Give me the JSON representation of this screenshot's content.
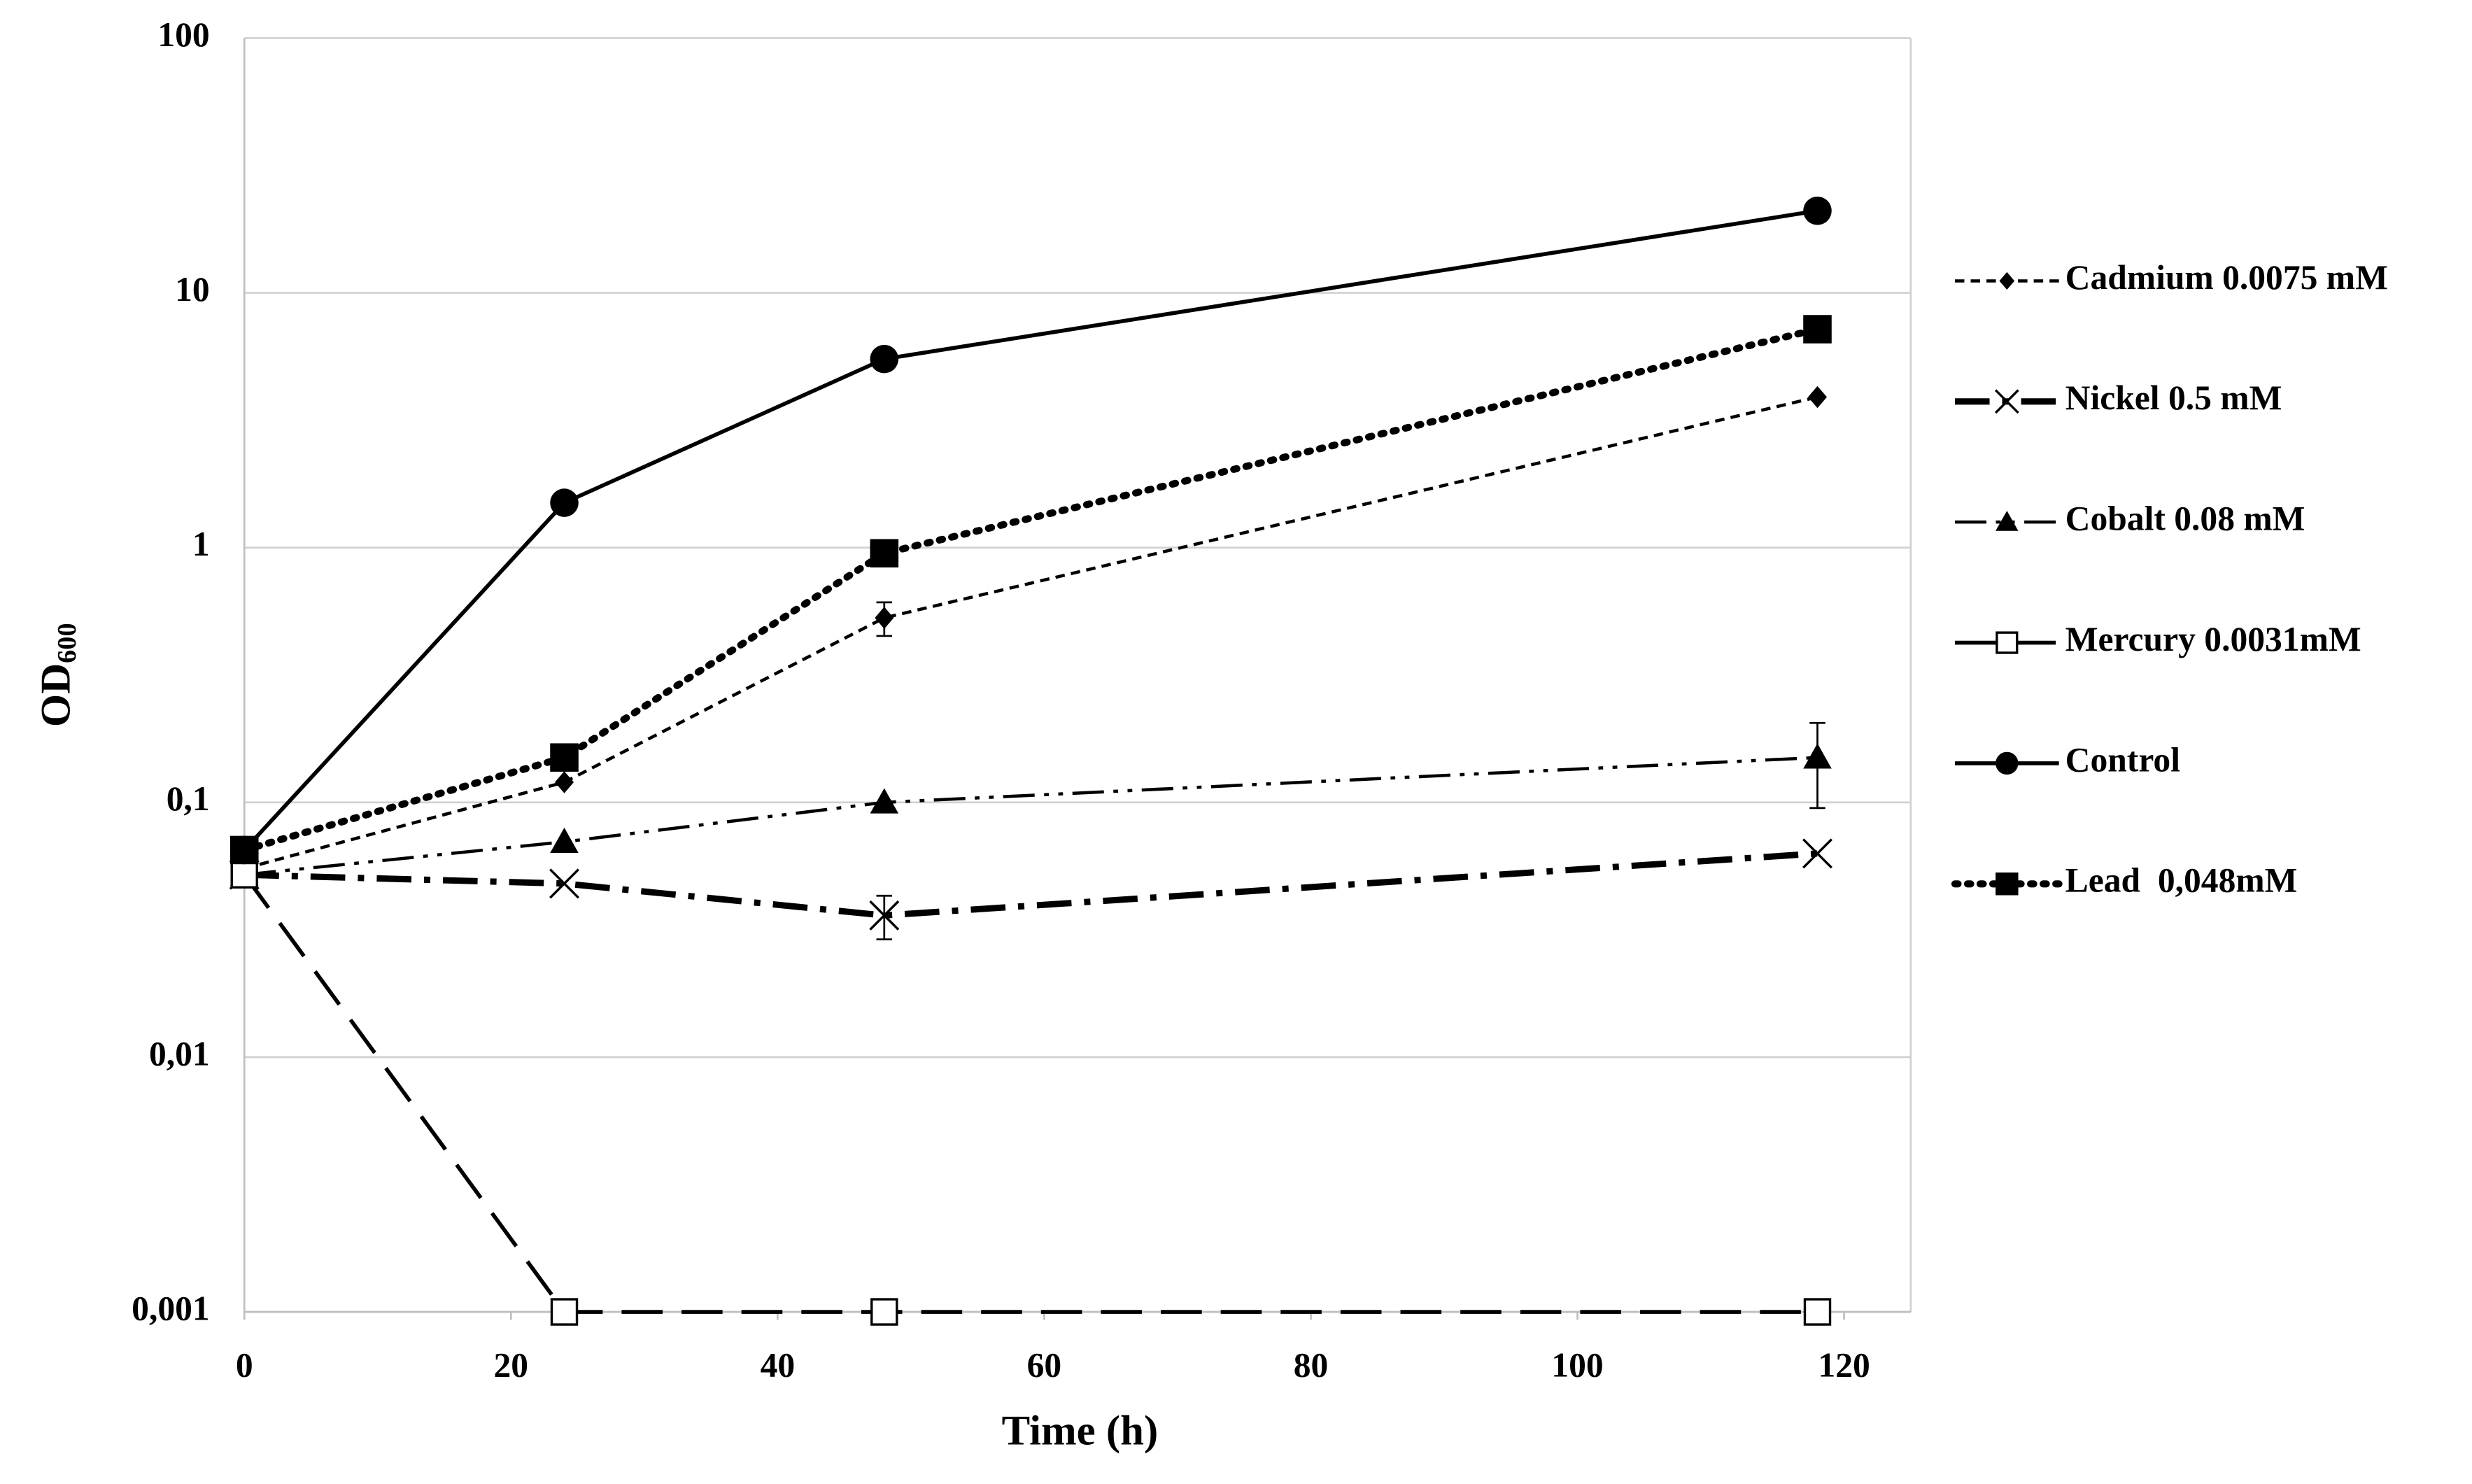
{
  "chart_data": {
    "type": "line",
    "xlabel": "Time (h)",
    "ylabel": "OD",
    "ylabel_subscript": "600",
    "x": [
      0,
      24,
      48,
      118
    ],
    "xlim": [
      0,
      125
    ],
    "xticks": [
      0,
      20,
      40,
      60,
      80,
      100,
      120
    ],
    "ylim": [
      0.001,
      100
    ],
    "log_y": true,
    "grid": true,
    "legend": "right",
    "yticks": [
      {
        "value": 0.001,
        "label": "0,001"
      },
      {
        "value": 0.01,
        "label": "0,01"
      },
      {
        "value": 0.1,
        "label": "0,1"
      },
      1,
      10,
      100
    ],
    "series": [
      {
        "name": "Cadmium 0.0075 mM",
        "color": "#000000",
        "dash": "short-dash",
        "marker": "diamond",
        "values": [
          0.055,
          0.12,
          0.53,
          3.9
        ],
        "errors": [
          null,
          null,
          0.08,
          null
        ]
      },
      {
        "name": "Nickel 0.5 mM",
        "color": "#000000",
        "dash": "long-dash-dot",
        "marker": "cross",
        "values": [
          0.052,
          0.048,
          0.036,
          0.063
        ],
        "errors": [
          null,
          null,
          0.007,
          null
        ]
      },
      {
        "name": "Cobalt 0.08 mM",
        "color": "#000000",
        "dash": "dash-dot-dot",
        "marker": "triangle",
        "values": [
          0.052,
          0.07,
          0.1,
          0.15
        ],
        "errors": [
          null,
          null,
          null,
          0.055
        ]
      },
      {
        "name": "Mercury 0.0031mM",
        "color": "#000000",
        "dash": "long-dash",
        "marker": "open-square",
        "values": [
          0.052,
          0.001,
          0.001,
          0.001
        ]
      },
      {
        "name": "Control",
        "color": "#000000",
        "dash": "solid",
        "marker": "circle",
        "values": [
          0.065,
          1.5,
          5.5,
          21
        ]
      },
      {
        "name": "Lead  0,048mM",
        "color": "#000000",
        "dash": "dotted",
        "marker": "square",
        "values": [
          0.065,
          0.15,
          0.95,
          7.2
        ]
      }
    ]
  }
}
